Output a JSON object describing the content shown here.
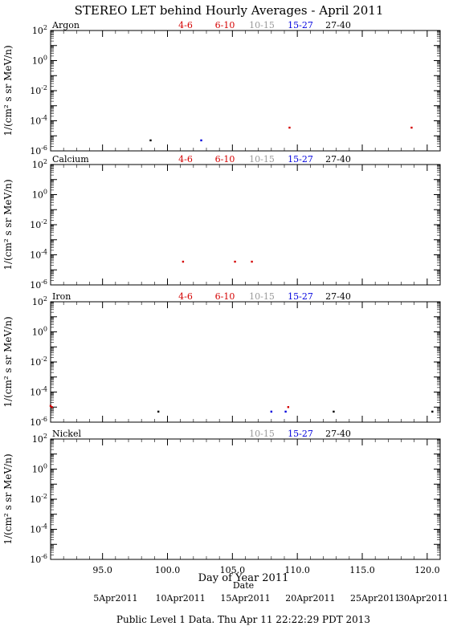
{
  "title": "STEREO LET behind Hourly Averages - April 2011",
  "ylabel": "1/(cm² s sr MeV/n)",
  "xlabel": "Day of Year 2011",
  "date_label": "Date",
  "footer": "Public Level 1 Data. Thu Apr 11 22:22:29 PDT 2013",
  "legend": [
    {
      "label": "4-6",
      "color": "#d40000"
    },
    {
      "label": "6-10",
      "color": "#d40000"
    },
    {
      "label": "10-15",
      "color": "#999999"
    },
    {
      "label": "15-27",
      "color": "#0000dd"
    },
    {
      "label": "27-40",
      "color": "#000000"
    }
  ],
  "chart_data": [
    {
      "type": "scatter",
      "element": "Argon",
      "legend_shown": [
        "4-6",
        "6-10",
        "10-15",
        "15-27",
        "27-40"
      ],
      "xlim": [
        91.0,
        121.0
      ],
      "ylim": [
        1e-06,
        100
      ],
      "yscale": "log",
      "y_ticks": [
        "10^2",
        "10^0",
        "10^-2",
        "10^-4",
        "10^-6"
      ],
      "points": [
        {
          "x": 98.7,
          "y": 5e-06,
          "series": "27-40"
        },
        {
          "x": 102.6,
          "y": 5e-06,
          "series": "15-27"
        },
        {
          "x": 109.4,
          "y": 3.5e-05,
          "series": "4-6"
        },
        {
          "x": 118.8,
          "y": 3.5e-05,
          "series": "4-6"
        }
      ]
    },
    {
      "type": "scatter",
      "element": "Calcium",
      "legend_shown": [
        "4-6",
        "6-10",
        "10-15",
        "15-27",
        "27-40"
      ],
      "xlim": [
        91.0,
        121.0
      ],
      "ylim": [
        1e-06,
        100
      ],
      "yscale": "log",
      "y_ticks": [
        "10^2",
        "10^0",
        "10^-2",
        "10^-4",
        "10^-6"
      ],
      "points": [
        {
          "x": 101.2,
          "y": 3.5e-05,
          "series": "4-6"
        },
        {
          "x": 105.2,
          "y": 3.5e-05,
          "series": "4-6"
        },
        {
          "x": 106.5,
          "y": 3.5e-05,
          "series": "4-6"
        }
      ]
    },
    {
      "type": "scatter",
      "element": "Iron",
      "legend_shown": [
        "4-6",
        "6-10",
        "10-15",
        "15-27",
        "27-40"
      ],
      "xlim": [
        91.0,
        121.0
      ],
      "ylim": [
        1e-06,
        100
      ],
      "yscale": "log",
      "y_ticks": [
        "10^2",
        "10^0",
        "10^-2",
        "10^-4",
        "10^-6"
      ],
      "points": [
        {
          "x": 91.0,
          "y": 1.2e-05,
          "series": "4-6"
        },
        {
          "x": 91.1,
          "y": 1e-05,
          "series": "6-10"
        },
        {
          "x": 99.3,
          "y": 5e-06,
          "series": "27-40"
        },
        {
          "x": 108.0,
          "y": 5e-06,
          "series": "15-27"
        },
        {
          "x": 109.1,
          "y": 5e-06,
          "series": "15-27"
        },
        {
          "x": 109.3,
          "y": 1e-05,
          "series": "6-10"
        },
        {
          "x": 112.8,
          "y": 5e-06,
          "series": "27-40"
        },
        {
          "x": 120.4,
          "y": 5e-06,
          "series": "27-40"
        }
      ]
    },
    {
      "type": "scatter",
      "element": "Nickel",
      "legend_shown": [
        "10-15",
        "15-27",
        "27-40"
      ],
      "xlim": [
        91.0,
        121.0
      ],
      "ylim": [
        1e-06,
        100
      ],
      "yscale": "log",
      "y_ticks": [
        "10^2",
        "10^0",
        "10^-2",
        "10^-4",
        "10^-6"
      ],
      "points": []
    }
  ],
  "x_ticks": [
    "95.0",
    "100.0",
    "105.0",
    "110.0",
    "115.0",
    "120.0"
  ],
  "date_ticks": [
    {
      "label": "5Apr2011",
      "x": 96.0
    },
    {
      "label": "10Apr2011",
      "x": 101.0
    },
    {
      "label": "15Apr2011",
      "x": 106.0
    },
    {
      "label": "20Apr2011",
      "x": 111.0
    },
    {
      "label": "25Apr2011",
      "x": 116.0
    },
    {
      "label": "30Apr2011",
      "x": 121.0
    }
  ]
}
